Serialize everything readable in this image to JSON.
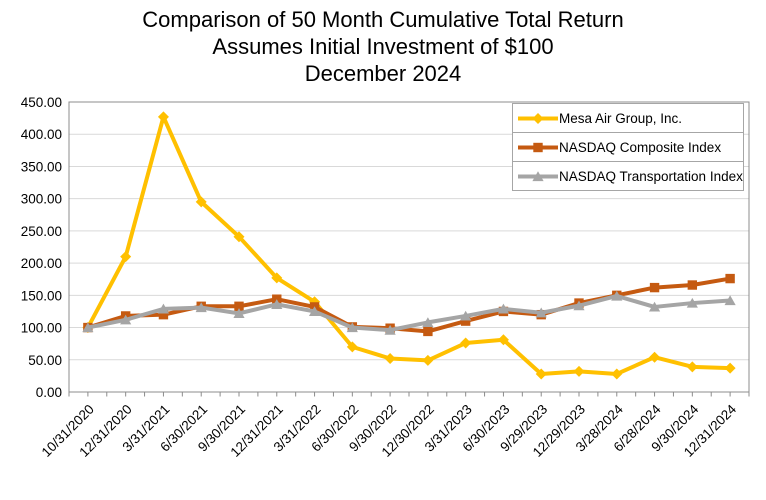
{
  "chart_data": {
    "type": "line",
    "title_lines": [
      "Comparison of 50 Month Cumulative Total Return",
      "Assumes Initial Investment of $100",
      "December 2024"
    ],
    "categories": [
      "10/31/2020",
      "12/31/2020",
      "3/31/2021",
      "6/30/2021",
      "9/30/2021",
      "12/31/2021",
      "3/31/2022",
      "6/30/2022",
      "9/30/2022",
      "12/30/2022",
      "3/31/2023",
      "6/30/2023",
      "9/29/2023",
      "12/29/2023",
      "3/28/2024",
      "6/28/2024",
      "9/30/2024",
      "12/31/2024"
    ],
    "series": [
      {
        "name": "Mesa Air Group, Inc.",
        "color": "#FFC000",
        "marker": "diamond",
        "values": [
          100,
          210,
          427,
          295,
          241,
          177,
          140,
          70,
          52,
          49,
          76,
          81,
          28,
          32,
          28,
          54,
          39,
          37
        ]
      },
      {
        "name": "NASDAQ Composite Index",
        "color": "#C55A11",
        "marker": "square",
        "values": [
          100,
          118,
          120,
          133,
          133,
          144,
          132,
          101,
          99,
          94,
          110,
          125,
          120,
          138,
          150,
          162,
          166,
          176
        ]
      },
      {
        "name": "NASDAQ Transportation Index",
        "color": "#A5A5A5",
        "marker": "triangle",
        "values": [
          100,
          112,
          129,
          131,
          122,
          136,
          125,
          100,
          96,
          108,
          118,
          129,
          123,
          134,
          149,
          132,
          138,
          142
        ]
      }
    ],
    "y_axis": {
      "min": 0,
      "max": 450,
      "step": 50,
      "tick_labels": [
        "0.00",
        "50.00",
        "100.00",
        "150.00",
        "200.00",
        "250.00",
        "300.00",
        "350.00",
        "400.00",
        "450.00"
      ]
    },
    "x_axis": {
      "label_angle_deg": -45
    },
    "legend_position": "top-right",
    "grid": true,
    "colors": {
      "gridline": "#D9D9D9",
      "axis": "#8C8C8C",
      "background": "#FFFFFF",
      "legend_border": "#A6A6A6"
    }
  }
}
